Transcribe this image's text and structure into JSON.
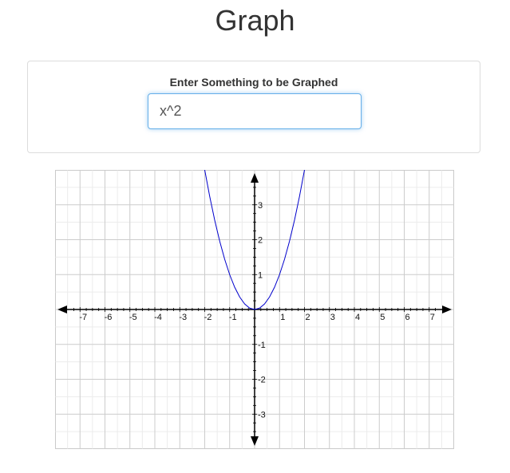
{
  "page": {
    "title": "Graph"
  },
  "form": {
    "label": "Enter Something to be Graphed",
    "value": "x^2",
    "accent_color": "#66afe9"
  },
  "chart_data": {
    "type": "line",
    "expression": "x^2",
    "xlim": [
      -8,
      8
    ],
    "ylim": [
      -4,
      4
    ],
    "x_ticks": [
      "-7",
      "-6",
      "-5",
      "-4",
      "-3",
      "-2",
      "-1",
      "1",
      "2",
      "3",
      "4",
      "5",
      "6",
      "7"
    ],
    "y_ticks": [
      "3",
      "2",
      "1",
      "-1",
      "-2",
      "-3"
    ],
    "grid": true,
    "series": [
      {
        "color": "#0000cc",
        "x": [
          -2,
          -1.8,
          -1.6,
          -1.4,
          -1.2,
          -1,
          -0.8,
          -0.6,
          -0.4,
          -0.2,
          0,
          0.2,
          0.4,
          0.6,
          0.8,
          1,
          1.2,
          1.4,
          1.6,
          1.8,
          2
        ],
        "y": [
          4,
          3.24,
          2.56,
          1.96,
          1.44,
          1,
          0.64,
          0.36,
          0.16,
          0.04,
          0,
          0.04,
          0.16,
          0.36,
          0.64,
          1,
          1.44,
          1.96,
          2.56,
          3.24,
          4
        ]
      }
    ]
  }
}
